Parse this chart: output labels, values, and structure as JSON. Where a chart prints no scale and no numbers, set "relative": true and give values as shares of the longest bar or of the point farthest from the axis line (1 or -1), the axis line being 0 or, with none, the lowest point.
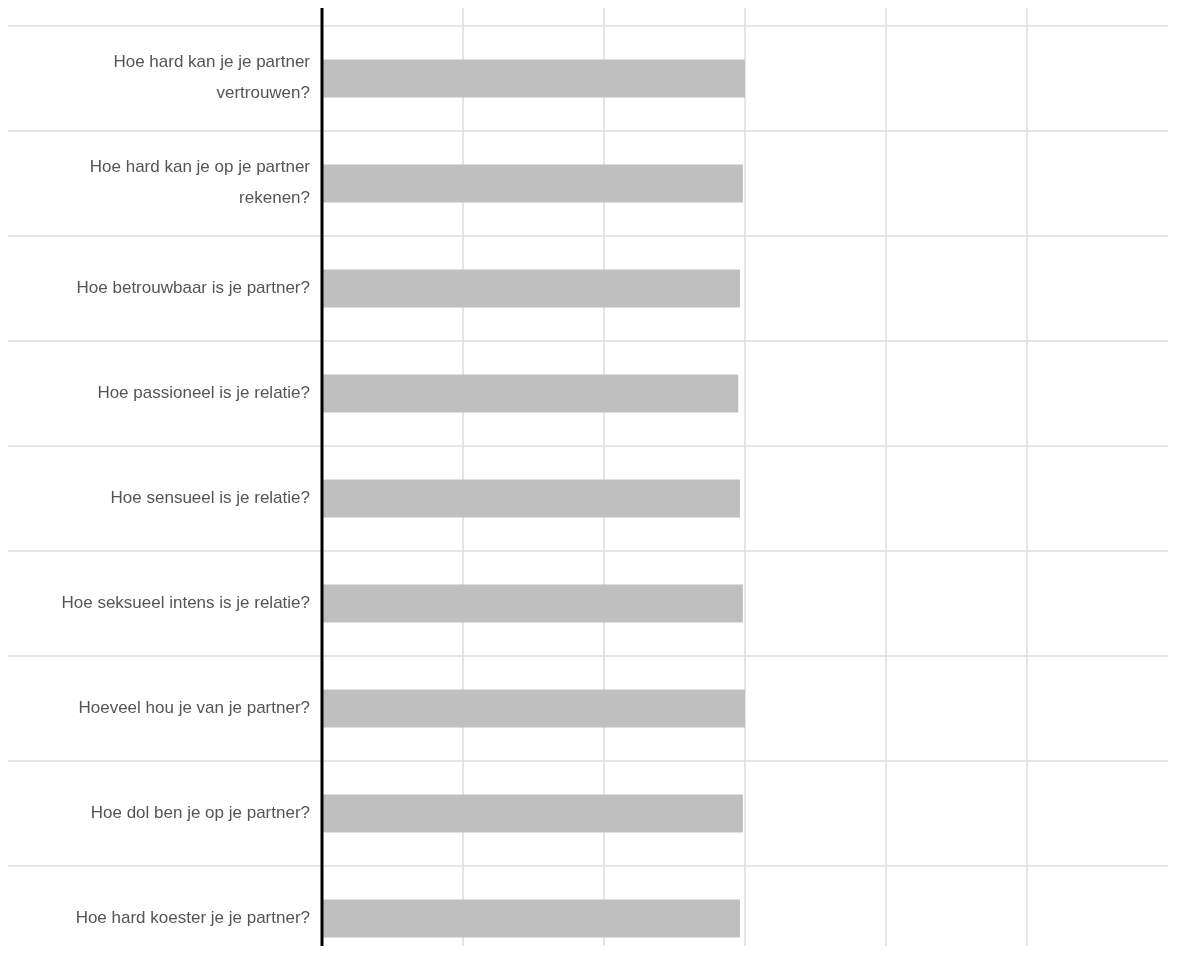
{
  "chart_data": {
    "type": "bar",
    "orientation": "horizontal",
    "relative": true,
    "grid": true,
    "color": "#bfbfbf",
    "categories": [
      "Hoe hard kan je je partner vertrouwen?",
      "Hoe hard kan je op je partner rekenen?",
      "Hoe betrouwbaar is je partner?",
      "Hoe passioneel is je relatie?",
      "Hoe sensueel is je relatie?",
      "Hoe seksueel intens is je relatie?",
      "Hoeveel hou je van je partner?",
      "Hoe dol ben je op je partner?",
      "Hoe hard koester je je partner?"
    ],
    "values": [
      1,
      0.995,
      0.988,
      0.984,
      0.988,
      0.995,
      1,
      0.995,
      0.988
    ]
  }
}
